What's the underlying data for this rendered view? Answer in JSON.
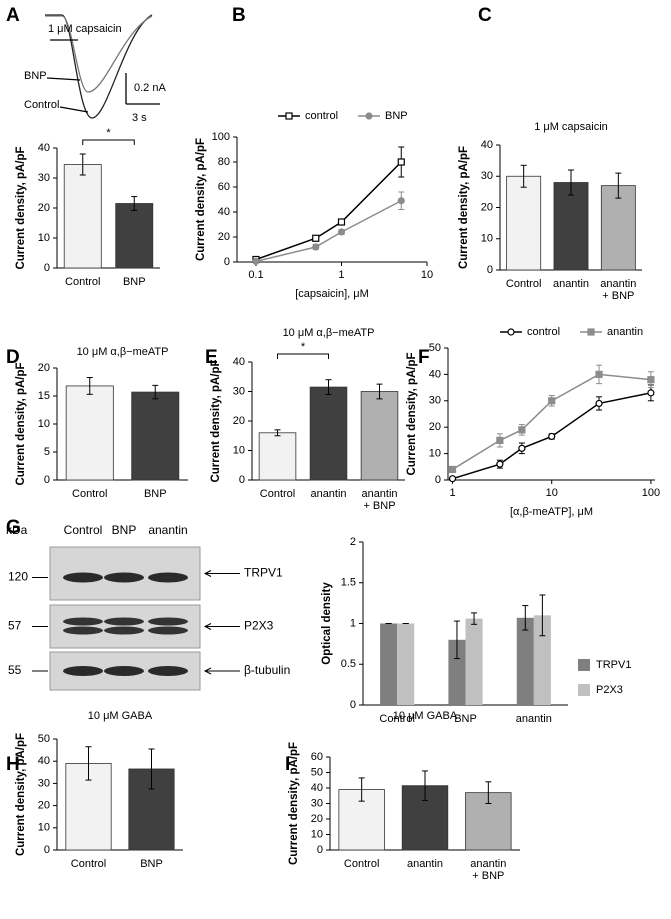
{
  "chart_data": [
    {
      "panel": "A",
      "type": "bar",
      "trace_labels": {
        "stimulus": "1 μM  capsaicin",
        "bnp": "BNP",
        "control": "Control",
        "scale_y": "0.2 nA",
        "scale_x": "3 s"
      },
      "y_label": "Current density, pA/pF",
      "categories": [
        "Control",
        "BNP"
      ],
      "values": [
        34.5,
        21.5
      ],
      "errors": [
        3.5,
        2.3
      ],
      "colors": [
        "#f2f2f2",
        "#404040"
      ],
      "ylim": [
        0,
        40
      ],
      "yticks": [
        0,
        10,
        20,
        30,
        40
      ],
      "annotation": "*"
    },
    {
      "panel": "B",
      "type": "line",
      "xscale": "log",
      "y_label": "Current density, pA/pF",
      "x_label": "[capsaicin], μM",
      "x": [
        0.1,
        0.5,
        1,
        5
      ],
      "series": [
        {
          "name": "control",
          "color": "#000000",
          "marker": "square",
          "open": true,
          "values": [
            2,
            19,
            32,
            80
          ],
          "errors": [
            1,
            2,
            2,
            12
          ]
        },
        {
          "name": "BNP",
          "color": "#8c8c8c",
          "marker": "circle",
          "open": false,
          "values": [
            0.5,
            12,
            24,
            49
          ],
          "errors": [
            1,
            2,
            2,
            7
          ]
        }
      ],
      "xlim": [
        0.06,
        10
      ],
      "xticks": [
        0.1,
        1,
        10
      ],
      "ylim": [
        0,
        100
      ],
      "yticks": [
        0,
        20,
        40,
        60,
        80,
        100
      ]
    },
    {
      "panel": "C",
      "type": "bar",
      "subtitle": "1 μM  capsaicin",
      "y_label": "Current density, pA/pF",
      "categories": [
        "Control",
        "anantin",
        [
          "anantin",
          "+ BNP"
        ]
      ],
      "values": [
        30,
        28,
        27
      ],
      "errors": [
        3.5,
        4,
        4
      ],
      "colors": [
        "#f2f2f2",
        "#404040",
        "#b0b0b0"
      ],
      "ylim": [
        0,
        40
      ],
      "yticks": [
        0,
        10,
        20,
        30,
        40
      ]
    },
    {
      "panel": "D",
      "type": "bar",
      "subtitle": "10 μM  α,β−meATP",
      "y_label": "Current density, pA/pF",
      "categories": [
        "Control",
        "BNP"
      ],
      "values": [
        16.8,
        15.7
      ],
      "errors": [
        1.5,
        1.2
      ],
      "colors": [
        "#f2f2f2",
        "#404040"
      ],
      "ylim": [
        0,
        20
      ],
      "yticks": [
        0,
        5,
        10,
        15,
        20
      ]
    },
    {
      "panel": "E",
      "type": "bar",
      "subtitle": "10 μM  α,β−meATP",
      "y_label": "Current density, pA/pF",
      "categories": [
        "Control",
        "anantin",
        [
          "anantin",
          "+ BNP"
        ]
      ],
      "values": [
        16,
        31.5,
        30
      ],
      "errors": [
        1,
        2.5,
        2.5
      ],
      "colors": [
        "#f2f2f2",
        "#404040",
        "#b0b0b0"
      ],
      "ylim": [
        0,
        40
      ],
      "yticks": [
        0,
        10,
        20,
        30,
        40
      ],
      "annotation": "*"
    },
    {
      "panel": "F",
      "type": "line",
      "xscale": "log",
      "y_label": "Current density, pA/pF",
      "x_label": "[α,β-meATP], μM",
      "x": [
        1,
        3,
        5,
        10,
        30,
        100
      ],
      "series": [
        {
          "name": "control",
          "color": "#000000",
          "marker": "circle",
          "open": true,
          "values": [
            0.5,
            6,
            12,
            16.5,
            29,
            33
          ],
          "errors": [
            0.5,
            1.5,
            2,
            1,
            2.5,
            3
          ]
        },
        {
          "name": "anantin",
          "color": "#8c8c8c",
          "marker": "square",
          "open": false,
          "values": [
            4,
            15,
            19,
            30,
            40,
            38
          ],
          "errors": [
            1,
            2.5,
            2,
            2,
            3.5,
            3
          ]
        }
      ],
      "xlim": [
        0.9,
        110
      ],
      "xticks": [
        1,
        10,
        100
      ],
      "ylim": [
        0,
        50
      ],
      "yticks": [
        0,
        10,
        20,
        30,
        40,
        50
      ]
    },
    {
      "panel": "G",
      "type": "blot",
      "unit_label": "kDa",
      "lanes": [
        "Control",
        "BNP",
        "anantin"
      ],
      "bands": [
        {
          "marker": 120,
          "name": "TRPV1"
        },
        {
          "marker": 57,
          "name": "P2X3"
        },
        {
          "marker": 55,
          "name": "β-tubulin"
        }
      ]
    },
    {
      "panel": "",
      "type": "bar",
      "y_label": "Optical density",
      "categories": [
        "Control",
        "BNP",
        "anantin"
      ],
      "series": [
        {
          "name": "TRPV1",
          "color": "#7f7f7f",
          "values": [
            1,
            0.8,
            1.07
          ],
          "errors": [
            0,
            0.23,
            0.15
          ]
        },
        {
          "name": "P2X3",
          "color": "#c0c0c0",
          "values": [
            1,
            1.06,
            1.1
          ],
          "errors": [
            0,
            0.07,
            0.25
          ]
        }
      ],
      "ylim": [
        0,
        2
      ],
      "yticks": [
        0,
        0.5,
        1,
        1.5,
        2
      ],
      "legend": "right"
    },
    {
      "panel": "H",
      "type": "bar",
      "subtitle": "10 μM GABA",
      "y_label": "Current density, pA/pF",
      "categories": [
        "Control",
        "BNP"
      ],
      "values": [
        39,
        36.5
      ],
      "errors": [
        7.5,
        9
      ],
      "colors": [
        "#f2f2f2",
        "#404040"
      ],
      "ylim": [
        0,
        50
      ],
      "yticks": [
        0,
        10,
        20,
        30,
        40,
        50
      ]
    },
    {
      "panel": "I",
      "type": "bar",
      "subtitle": "10 μM GABA",
      "y_label": "Current density, pA/pF",
      "categories": [
        "Control",
        "anantin",
        [
          "anantin",
          "+ BNP"
        ]
      ],
      "values": [
        39,
        41.5,
        37
      ],
      "errors": [
        7.5,
        9.5,
        7
      ],
      "colors": [
        "#f2f2f2",
        "#404040",
        "#b0b0b0"
      ],
      "ylim": [
        0,
        60
      ],
      "yticks": [
        0,
        10,
        20,
        30,
        40,
        50,
        60
      ]
    }
  ]
}
